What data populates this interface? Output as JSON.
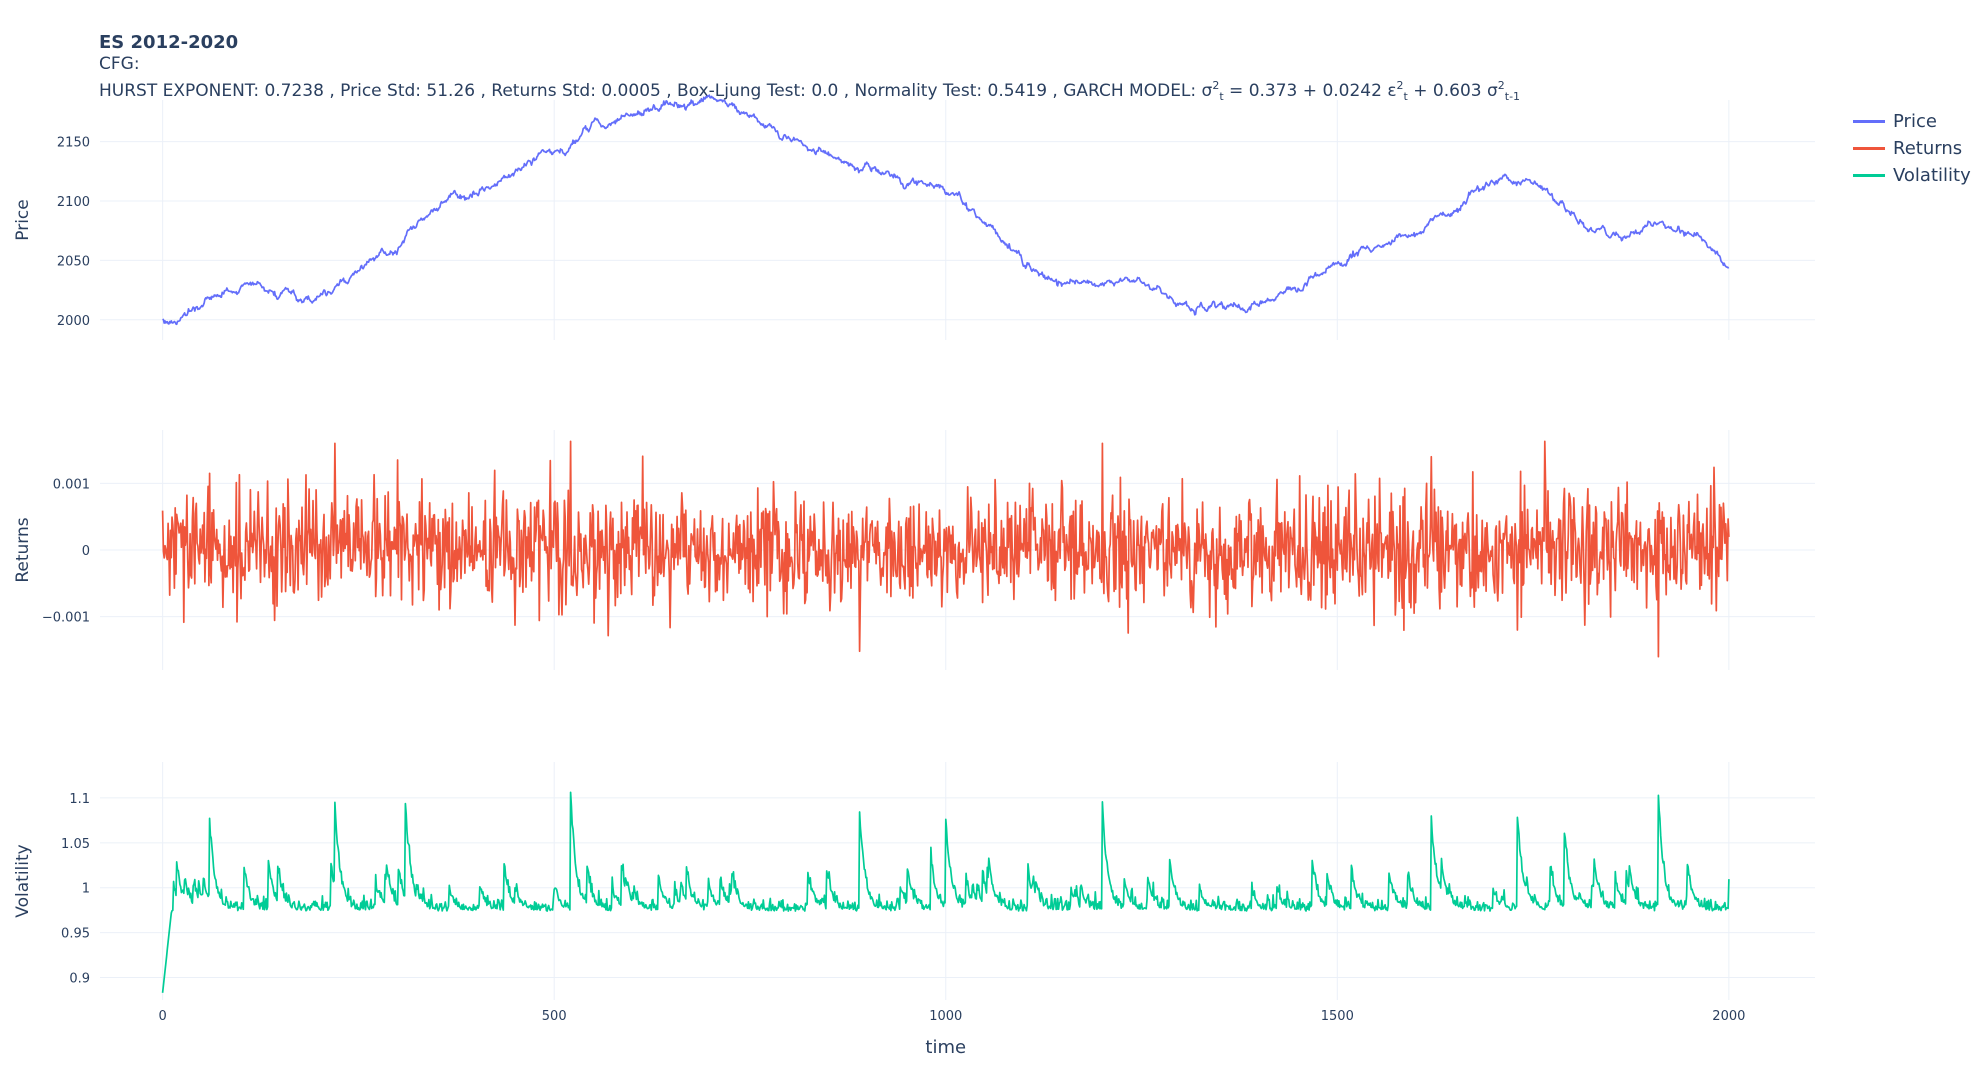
{
  "title": {
    "main": "ES 2012-2020",
    "line2": "CFG:",
    "stats_prefix": "HURST EXPONENT: 0.7238 , Price Std: 51.26 , Returns Std: 0.0005 , Box-Ljung Test: 0.0 , Normality Test: 0.5419 , GARCH MODEL: ",
    "sigma": "σ",
    "epsilon": "ε",
    "two": "2",
    "sub_t": "t",
    "sub_t1": "t-1",
    "eq_omega": " = 0.373 + ",
    "eq_alpha": "0.0242 ",
    "eq_beta": " + 0.603 "
  },
  "legend": [
    {
      "name": "Price",
      "color": "#636efa"
    },
    {
      "name": "Returns",
      "color": "#ef553b"
    },
    {
      "name": "Volatility",
      "color": "#00cc96"
    }
  ],
  "chart_data": [
    {
      "type": "line",
      "ylabel": "Price",
      "xlim": [
        -80,
        2110
      ],
      "ylim": [
        1983,
        2185
      ],
      "yticks": [
        {
          "v": 2000,
          "label": "2000"
        },
        {
          "v": 2050,
          "label": "2050"
        },
        {
          "v": 2100,
          "label": "2100"
        },
        {
          "v": 2150,
          "label": "2150"
        }
      ],
      "grid": true,
      "series": [
        {
          "name": "Price",
          "color": "#636efa",
          "n": 2000,
          "noise": 2.2,
          "seed": 17,
          "anchors": [
            [
              0,
              2000
            ],
            [
              10,
              1997
            ],
            [
              40,
              2007
            ],
            [
              60,
              2016
            ],
            [
              100,
              2027
            ],
            [
              130,
              2028
            ],
            [
              150,
              2020
            ],
            [
              160,
              2022
            ],
            [
              170,
              2018
            ],
            [
              190,
              2016
            ],
            [
              220,
              2026
            ],
            [
              250,
              2042
            ],
            [
              280,
              2056
            ],
            [
              300,
              2060
            ],
            [
              320,
              2080
            ],
            [
              340,
              2092
            ],
            [
              370,
              2104
            ],
            [
              400,
              2106
            ],
            [
              430,
              2118
            ],
            [
              460,
              2128
            ],
            [
              490,
              2141
            ],
            [
              520,
              2148
            ],
            [
              540,
              2160
            ],
            [
              570,
              2165
            ],
            [
              590,
              2172
            ],
            [
              620,
              2174
            ],
            [
              640,
              2181
            ],
            [
              680,
              2180
            ],
            [
              700,
              2184
            ],
            [
              740,
              2178
            ],
            [
              760,
              2170
            ],
            [
              800,
              2152
            ],
            [
              830,
              2143
            ],
            [
              860,
              2136
            ],
            [
              890,
              2127
            ],
            [
              910,
              2128
            ],
            [
              930,
              2122
            ],
            [
              950,
              2114
            ],
            [
              980,
              2115
            ],
            [
              1000,
              2104
            ],
            [
              1030,
              2093
            ],
            [
              1060,
              2077
            ],
            [
              1090,
              2058
            ],
            [
              1110,
              2044
            ],
            [
              1130,
              2037
            ],
            [
              1150,
              2029
            ],
            [
              1180,
              2034
            ],
            [
              1190,
              2030
            ],
            [
              1210,
              2030
            ],
            [
              1230,
              2036
            ],
            [
              1250,
              2033
            ],
            [
              1270,
              2024
            ],
            [
              1300,
              2015
            ],
            [
              1320,
              2007
            ],
            [
              1350,
              2011
            ],
            [
              1380,
              2011
            ],
            [
              1410,
              2014
            ],
            [
              1440,
              2025
            ],
            [
              1470,
              2037
            ],
            [
              1500,
              2043
            ],
            [
              1530,
              2057
            ],
            [
              1550,
              2059
            ],
            [
              1580,
              2070
            ],
            [
              1610,
              2074
            ],
            [
              1640,
              2088
            ],
            [
              1670,
              2104
            ],
            [
              1700,
              2116
            ],
            [
              1730,
              2116
            ],
            [
              1760,
              2112
            ],
            [
              1780,
              2102
            ],
            [
              1800,
              2090
            ],
            [
              1820,
              2076
            ],
            [
              1850,
              2072
            ],
            [
              1870,
              2067
            ],
            [
              1890,
              2078
            ],
            [
              1910,
              2082
            ],
            [
              1930,
              2076
            ],
            [
              1960,
              2073
            ],
            [
              1980,
              2056
            ],
            [
              2000,
              2041
            ]
          ]
        }
      ]
    },
    {
      "type": "line",
      "ylabel": "Returns",
      "xlim": [
        -80,
        2110
      ],
      "ylim": [
        -0.0018,
        0.0018
      ],
      "yticks": [
        {
          "v": -0.001,
          "label": "−0.001"
        },
        {
          "v": 0,
          "label": "0"
        },
        {
          "v": 0.001,
          "label": "0.001"
        }
      ],
      "grid": true,
      "series": [
        {
          "name": "Returns",
          "color": "#ef553b",
          "n": 2000,
          "seed": 29,
          "sd": 0.00042,
          "min": -0.0016,
          "max": 0.00163,
          "spikes": [
            [
              220,
              0.0016
            ],
            [
              521,
              0.00163
            ],
            [
              1200,
              0.0016
            ],
            [
              1910,
              -0.0016
            ],
            [
              890,
              -0.00152
            ],
            [
              1620,
              0.0014
            ],
            [
              60,
              0.00115
            ],
            [
              300,
              0.00135
            ],
            [
              1730,
              -0.0012
            ]
          ]
        }
      ]
    },
    {
      "type": "line",
      "ylabel": "Volatility",
      "xlabel": "time",
      "xlim": [
        -80,
        2110
      ],
      "ylim": [
        0.875,
        1.14
      ],
      "yticks": [
        {
          "v": 0.9,
          "label": "0.9"
        },
        {
          "v": 0.95,
          "label": "0.95"
        },
        {
          "v": 1,
          "label": "1"
        },
        {
          "v": 1.05,
          "label": "1.05"
        },
        {
          "v": 1.1,
          "label": "1.1"
        }
      ],
      "xticks": [
        {
          "v": 0,
          "label": "0"
        },
        {
          "v": 500,
          "label": "500"
        },
        {
          "v": 1000,
          "label": "1000"
        },
        {
          "v": 1500,
          "label": "1500"
        },
        {
          "v": 2000,
          "label": "2000"
        }
      ],
      "grid": true,
      "series": [
        {
          "name": "Volatility",
          "color": "#00cc96",
          "n": 2000,
          "seed": 41,
          "start": 0.883,
          "base": 0.98,
          "peaks": [
            [
              60,
              1.093
            ],
            [
              220,
              1.117
            ],
            [
              310,
              1.117
            ],
            [
              521,
              1.123
            ],
            [
              890,
              1.103
            ],
            [
              1000,
              1.097
            ],
            [
              1200,
              1.115
            ],
            [
              1620,
              1.099
            ],
            [
              1730,
              1.1
            ],
            [
              1790,
              1.08
            ],
            [
              1910,
              1.124
            ],
            [
              2000,
              1.02
            ]
          ]
        }
      ]
    }
  ]
}
